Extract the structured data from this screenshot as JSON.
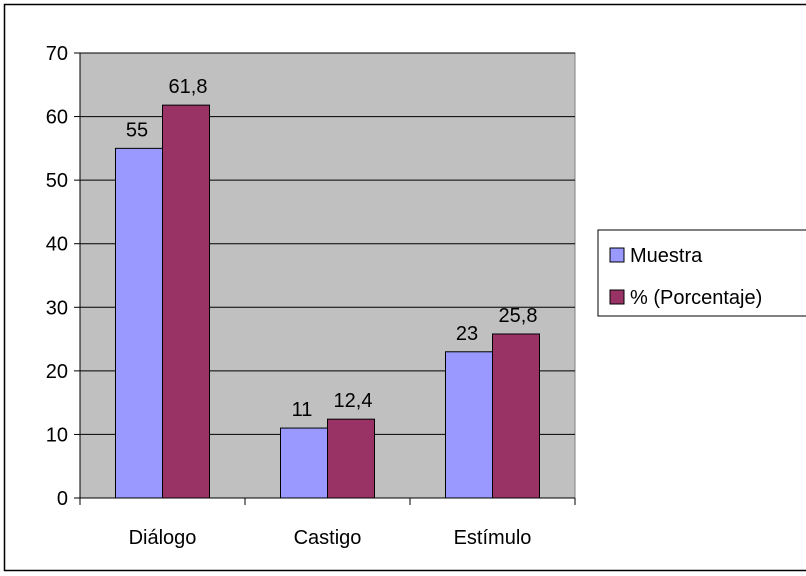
{
  "chart_data": {
    "type": "bar",
    "title": "",
    "xlabel": "",
    "ylabel": "",
    "categories": [
      "Diálogo",
      "Castigo",
      "Estímulo"
    ],
    "series": [
      {
        "name": "Muestra",
        "values": [
          55,
          11,
          23
        ],
        "labels": [
          "55",
          "11",
          "23"
        ],
        "color": "#9999ff"
      },
      {
        "name": "% (Porcentaje)",
        "values": [
          61.8,
          12.4,
          25.8
        ],
        "labels": [
          "61,8",
          "12,4",
          "25,8"
        ],
        "color": "#993366"
      }
    ],
    "ylim": [
      0,
      70
    ],
    "yticks": [
      {
        "value": 0,
        "label": "0"
      },
      {
        "value": 10,
        "label": "10"
      },
      {
        "value": 20,
        "label": "20"
      },
      {
        "value": 30,
        "label": "30"
      },
      {
        "value": 40,
        "label": "40"
      },
      {
        "value": 50,
        "label": "50"
      },
      {
        "value": 60,
        "label": "60"
      },
      {
        "value": 70,
        "label": "70"
      }
    ],
    "grid": true,
    "legend_position": "right",
    "plot_background": "#c0c0c0"
  }
}
